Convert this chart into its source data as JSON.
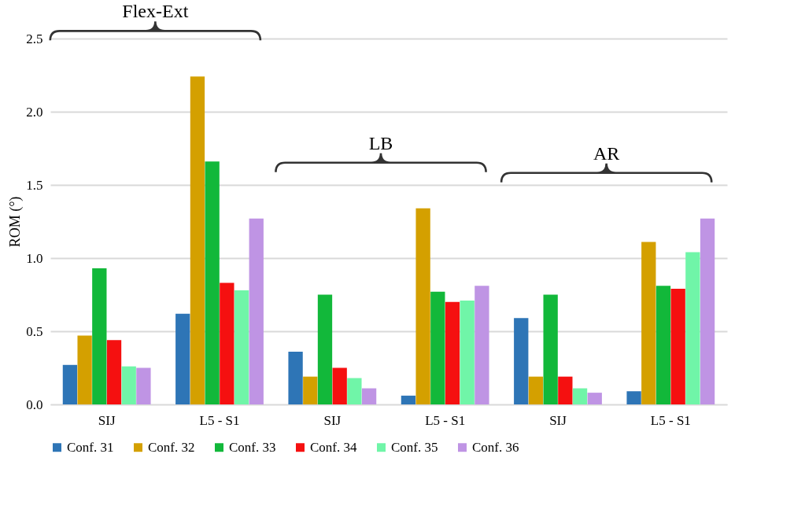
{
  "chart_data": {
    "type": "bar",
    "ylabel": "ROM (°)",
    "categories": [
      "SIJ",
      "L5 - S1",
      "SIJ",
      "L5 - S1",
      "SIJ",
      "L5 - S1"
    ],
    "series": [
      {
        "name": "Conf. 31",
        "color": "#2e75b6",
        "values": [
          0.27,
          0.62,
          0.36,
          0.06,
          0.59,
          0.09
        ]
      },
      {
        "name": "Conf. 32",
        "color": "#d4a000",
        "values": [
          0.47,
          2.24,
          0.19,
          1.34,
          0.19,
          1.11
        ]
      },
      {
        "name": "Conf. 33",
        "color": "#12b83a",
        "values": [
          0.93,
          1.66,
          0.75,
          0.77,
          0.75,
          0.81
        ]
      },
      {
        "name": "Conf. 34",
        "color": "#f51010",
        "values": [
          0.44,
          0.83,
          0.25,
          0.7,
          0.19,
          0.79
        ]
      },
      {
        "name": "Conf. 35",
        "color": "#70f5a8",
        "values": [
          0.26,
          0.78,
          0.18,
          0.71,
          0.11,
          1.04
        ]
      },
      {
        "name": "Conf. 36",
        "color": "#bf94e4",
        "values": [
          0.25,
          1.27,
          0.11,
          0.81,
          0.08,
          1.27
        ]
      }
    ],
    "ylim": [
      0,
      2.5
    ],
    "yticks": [
      {
        "value": 0,
        "label": "0.0"
      },
      {
        "value": 0.5,
        "label": "0.5"
      },
      {
        "value": 1,
        "label": "1.0"
      },
      {
        "value": 1.5,
        "label": "1.5"
      },
      {
        "value": 2,
        "label": "2.0"
      },
      {
        "value": 2.5,
        "label": "2.5"
      }
    ],
    "grid": "y",
    "legend": "bottom",
    "annotations": [
      "Flex-Ext",
      "LB",
      "AR"
    ]
  }
}
